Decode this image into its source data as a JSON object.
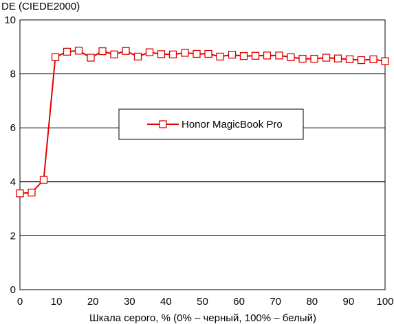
{
  "chart_data": {
    "type": "line",
    "ylabel": "DE (CIEDE2000)",
    "xlabel": "Шкала серого, % (0% – черный, 100% – белый)",
    "xlim": [
      0,
      100
    ],
    "ylim": [
      0,
      10
    ],
    "xticks": [
      0,
      10,
      20,
      30,
      40,
      50,
      60,
      70,
      80,
      90,
      100
    ],
    "yticks": [
      0,
      2,
      4,
      6,
      8,
      10
    ],
    "grid": "horizontal",
    "legend_position": "center",
    "series": [
      {
        "name": "Honor MagicBook Pro",
        "color": "#e00000",
        "marker": "square-hollow",
        "x": [
          0,
          3.2,
          6.5,
          9.7,
          12.9,
          16.1,
          19.4,
          22.6,
          25.8,
          29.0,
          32.3,
          35.5,
          38.7,
          41.9,
          45.2,
          48.4,
          51.6,
          54.8,
          58.1,
          61.3,
          64.5,
          67.7,
          71.0,
          74.2,
          77.4,
          80.6,
          83.9,
          87.1,
          90.3,
          93.5,
          96.8,
          100
        ],
        "y": [
          3.57,
          3.6,
          4.07,
          8.62,
          8.82,
          8.86,
          8.6,
          8.84,
          8.72,
          8.85,
          8.64,
          8.8,
          8.73,
          8.72,
          8.78,
          8.74,
          8.74,
          8.64,
          8.71,
          8.66,
          8.67,
          8.68,
          8.68,
          8.62,
          8.56,
          8.56,
          8.6,
          8.57,
          8.54,
          8.51,
          8.54,
          8.47
        ]
      }
    ]
  }
}
